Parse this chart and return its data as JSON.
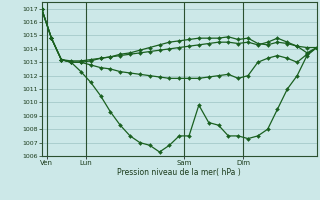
{
  "background_color": "#cce8e8",
  "grid_color": "#aacece",
  "line_color": "#1a6020",
  "vline_color": "#2a5030",
  "title": "Pression niveau de la mer( hPa )",
  "ylim": [
    1006,
    1017.5
  ],
  "yticks": [
    1006,
    1007,
    1008,
    1009,
    1010,
    1011,
    1012,
    1013,
    1014,
    1015,
    1016,
    1017
  ],
  "day_labels": [
    "Ven",
    "Lun",
    "Sam",
    "Dim"
  ],
  "day_positions": [
    0.5,
    4.5,
    14.5,
    20.5
  ],
  "xlim": [
    0,
    28
  ],
  "series": [
    {
      "x": [
        0,
        1,
        2,
        3,
        4,
        5,
        6,
        7,
        8,
        9,
        10,
        11,
        12,
        13,
        14,
        15,
        16,
        17,
        18,
        19,
        20,
        21,
        22,
        23,
        24,
        25,
        26,
        27,
        28
      ],
      "y": [
        1017,
        1014.8,
        1013.2,
        1013.1,
        1013.1,
        1013.2,
        1013.3,
        1013.4,
        1013.5,
        1013.6,
        1013.7,
        1013.8,
        1013.9,
        1014.0,
        1014.1,
        1014.2,
        1014.3,
        1014.4,
        1014.5,
        1014.5,
        1014.4,
        1014.5,
        1014.3,
        1014.5,
        1014.8,
        1014.5,
        1014.2,
        1014.1,
        1014.1
      ],
      "marker": "D",
      "markersize": 2,
      "linewidth": 0.9
    },
    {
      "x": [
        0,
        1,
        2,
        3,
        4,
        5,
        6,
        7,
        8,
        9,
        10,
        11,
        12,
        13,
        14,
        15,
        16,
        17,
        18,
        19,
        20,
        21,
        22,
        23,
        24,
        25,
        26,
        27,
        28
      ],
      "y": [
        1017,
        1014.8,
        1013.2,
        1013.0,
        1013.0,
        1013.1,
        1013.3,
        1013.4,
        1013.6,
        1013.7,
        1013.9,
        1014.1,
        1014.3,
        1014.5,
        1014.6,
        1014.7,
        1014.8,
        1014.8,
        1014.8,
        1014.9,
        1014.7,
        1014.8,
        1014.4,
        1014.3,
        1014.5,
        1014.4,
        1014.2,
        1013.7,
        1014.1
      ],
      "marker": "D",
      "markersize": 2,
      "linewidth": 0.9
    },
    {
      "x": [
        0,
        1,
        2,
        3,
        4,
        5,
        6,
        7,
        8,
        9,
        10,
        11,
        12,
        13,
        14,
        15,
        16,
        17,
        18,
        19,
        20,
        21,
        22,
        23,
        24,
        25,
        26,
        27,
        28
      ],
      "y": [
        1017,
        1014.8,
        1013.2,
        1013.0,
        1013.0,
        1012.8,
        1012.6,
        1012.5,
        1012.3,
        1012.2,
        1012.1,
        1012.0,
        1011.9,
        1011.8,
        1011.8,
        1011.8,
        1011.8,
        1011.9,
        1012.0,
        1012.1,
        1011.8,
        1012.0,
        1013.0,
        1013.3,
        1013.5,
        1013.3,
        1013.0,
        1013.6,
        1014.1
      ],
      "marker": "D",
      "markersize": 2,
      "linewidth": 0.9
    },
    {
      "x": [
        0,
        1,
        2,
        3,
        4,
        5,
        6,
        7,
        8,
        9,
        10,
        11,
        12,
        13,
        14,
        15,
        16,
        17,
        18,
        19,
        20,
        21,
        22,
        23,
        24,
        25,
        26,
        27,
        28
      ],
      "y": [
        1017,
        1014.8,
        1013.2,
        1013.0,
        1012.3,
        1011.5,
        1010.5,
        1009.3,
        1008.3,
        1007.5,
        1007.0,
        1006.8,
        1006.3,
        1006.8,
        1007.5,
        1007.5,
        1009.8,
        1008.5,
        1008.3,
        1007.5,
        1007.5,
        1007.3,
        1007.5,
        1008.0,
        1009.5,
        1011.0,
        1012.0,
        1013.5,
        1014.1
      ],
      "marker": "D",
      "markersize": 2,
      "linewidth": 0.9
    }
  ]
}
